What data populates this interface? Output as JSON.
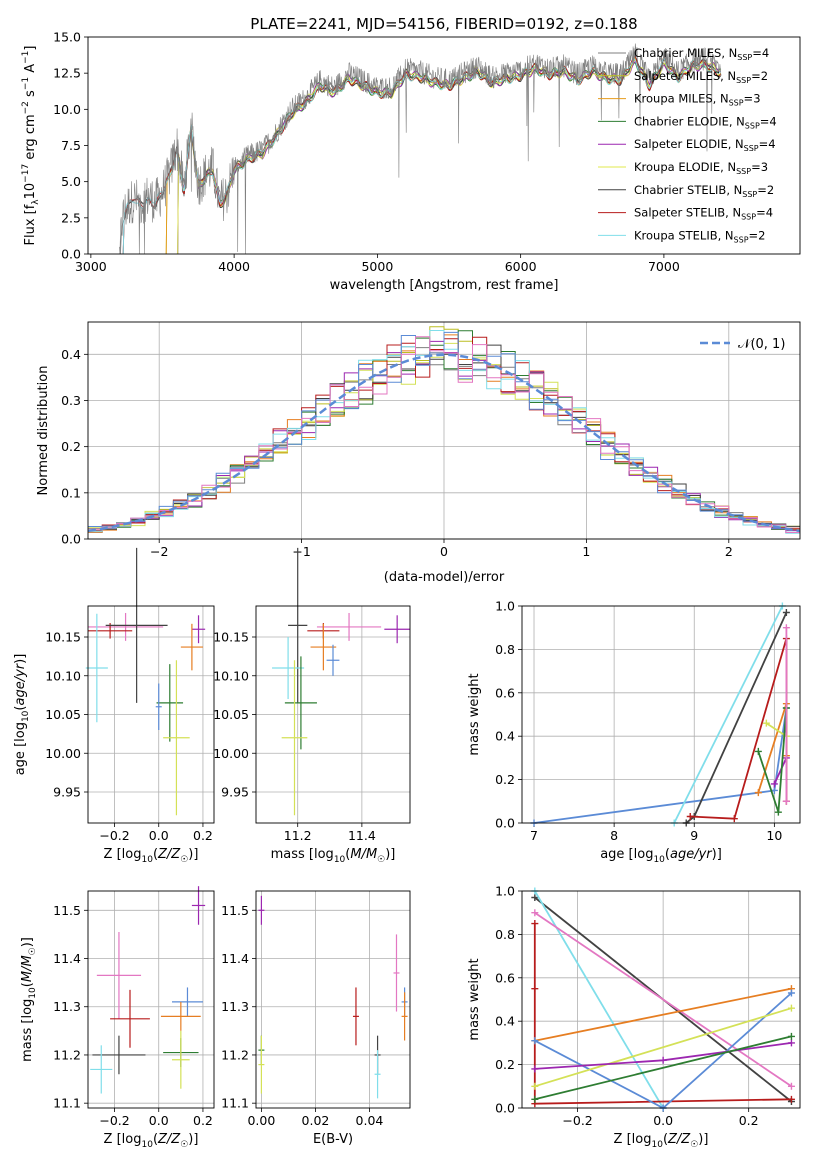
{
  "chart_data": [
    {
      "id": "spectrum",
      "type": "line",
      "title": "PLATE=2241, MJD=54156, FIBERID=0192, z=0.188",
      "xlabel": "wavelength [Angstrom, rest frame]",
      "ylabel": "Flux [f_λ10^-17 erg cm^-2 s^-1 A^-1]",
      "xlim": [
        2980,
        7950
      ],
      "ylim": [
        0,
        15
      ],
      "xticks": [
        "3000",
        "4000",
        "5000",
        "6000",
        "7000"
      ],
      "yticks": [
        "0.0",
        "2.5",
        "5.0",
        "7.5",
        "10.0",
        "12.5",
        "15.0"
      ],
      "grid": false,
      "legend_position": "top-right",
      "data_series": {
        "name": "",
        "color": "#7f7f7f",
        "x": [
          3200,
          3220,
          3250,
          3300,
          3350,
          3400,
          3450,
          3500,
          3550,
          3600,
          3650,
          3700,
          3750,
          3800,
          3850,
          3900,
          3950,
          4000,
          4100,
          4200,
          4300,
          4400,
          4500,
          4600,
          4700,
          4800,
          4900,
          5000,
          5100,
          5200,
          5300,
          5400,
          5500,
          5600,
          5700,
          5800,
          5900,
          6000,
          6100,
          6200,
          6300,
          6400,
          6500,
          6600,
          6700,
          6800,
          6900,
          7000,
          7100,
          7200,
          7300,
          7400
        ],
        "y": [
          0.0,
          2.5,
          3.2,
          3.8,
          3.5,
          4.0,
          3.6,
          4.3,
          5.5,
          7.5,
          4.5,
          9.0,
          4.8,
          5.5,
          6.0,
          3.5,
          4.2,
          6.0,
          6.8,
          7.2,
          8.5,
          10.0,
          10.8,
          12.0,
          11.5,
          12.5,
          12.0,
          11.5,
          11.5,
          12.8,
          12.6,
          12.2,
          12.0,
          12.5,
          13.0,
          12.2,
          12.5,
          12.7,
          13.2,
          12.8,
          13.0,
          12.4,
          13.0,
          12.5,
          12.4,
          13.8,
          12.0,
          13.6,
          12.6,
          13.4,
          13.5,
          12.9
        ]
      },
      "model_series": [
        {
          "name": "Chabrier MILES",
          "nssp": "4",
          "color": "#7f7f7f",
          "start": 3200
        },
        {
          "name": "Salpeter MILES",
          "nssp": "2",
          "color": "#bcbd22",
          "start": 3520
        },
        {
          "name": "Kroupa MILES",
          "nssp": "3",
          "color": "#e69b1c",
          "start": 3520
        },
        {
          "name": "Chabrier ELODIE",
          "nssp": "4",
          "color": "#2e7d32",
          "start": 3600
        },
        {
          "name": "Salpeter ELODIE",
          "nssp": "4",
          "color": "#9c27b0",
          "start": 3600
        },
        {
          "name": "Kroupa ELODIE",
          "nssp": "3",
          "color": "#e0e84d",
          "start": 3600
        },
        {
          "name": "Chabrier STELIB",
          "nssp": "2",
          "color": "#424242",
          "start": 3220
        },
        {
          "name": "Salpeter STELIB",
          "nssp": "4",
          "color": "#b71c1c",
          "start": 3220
        },
        {
          "name": "Kroupa STELIB",
          "nssp": "2",
          "color": "#80deea",
          "start": 3220
        }
      ]
    },
    {
      "id": "residuals",
      "type": "line",
      "xlabel": "(data-model)/error",
      "ylabel": "Normed distribution",
      "xlim": [
        -2.5,
        2.5
      ],
      "ylim": [
        0,
        0.47
      ],
      "xticks": [
        "−2",
        "−1",
        "0",
        "1",
        "2"
      ],
      "yticks": [
        "0.0",
        "0.1",
        "0.2",
        "0.3",
        "0.4"
      ],
      "grid": true,
      "legend_position": "top-right",
      "gaussian_label": "𝒩(0, 1)",
      "gaussian_color": "#5b8bd6",
      "bin_width": 0.1,
      "histogram_colors": [
        "#7f7f7f",
        "#bcbd22",
        "#e67e22",
        "#2e7d32",
        "#9c27b0",
        "#d4e157",
        "#424242",
        "#b71c1c",
        "#80deea",
        "#5b8bd6",
        "#e377c2"
      ]
    },
    {
      "id": "age-vs-Z",
      "type": "scatter",
      "xlabel": "Z [log10(Z/Z☉)]",
      "ylabel": "age [log10(age/yr)]",
      "xlim": [
        -0.32,
        0.25
      ],
      "ylim": [
        9.91,
        10.19
      ],
      "xticks": [
        "−0.2",
        "0.0",
        "0.2"
      ],
      "yticks": [
        "9.95",
        "10.00",
        "10.05",
        "10.10",
        "10.15"
      ],
      "grid": true,
      "points": [
        {
          "color": "#e377c2",
          "x": -0.15,
          "xerr": 0.17,
          "y": 10.163,
          "yerr": 0.018
        },
        {
          "color": "#b71c1c",
          "x": -0.22,
          "xerr": 0.1,
          "y": 10.158,
          "yerr": 0.01
        },
        {
          "color": "#424242",
          "x": -0.1,
          "xerr": 0.14,
          "y": 10.165,
          "yerr": 0.1
        },
        {
          "color": "#9c27b0",
          "x": 0.18,
          "xerr": 0.03,
          "y": 10.16,
          "yerr": 0.018
        },
        {
          "color": "#e67e22",
          "x": 0.15,
          "xerr": 0.05,
          "y": 10.137,
          "yerr": 0.03
        },
        {
          "color": "#80deea",
          "x": -0.28,
          "xerr": 0.05,
          "y": 10.11,
          "yerr": 0.07
        },
        {
          "color": "#2e7d32",
          "x": 0.05,
          "xerr": 0.06,
          "y": 10.065,
          "yerr": 0.05
        },
        {
          "color": "#d4e157",
          "x": 0.08,
          "xerr": 0.06,
          "y": 10.02,
          "yerr": 0.1
        },
        {
          "color": "#5b8bd6",
          "x": 0.0,
          "xerr": 0.0,
          "y": 10.06,
          "yerr": 0.03
        }
      ]
    },
    {
      "id": "age-vs-mass",
      "type": "scatter",
      "xlabel": "mass [log10(M/M☉)]",
      "ylabel": "",
      "xlim": [
        11.07,
        11.55
      ],
      "ylim": [
        9.91,
        10.19
      ],
      "xticks": [
        "11.2",
        "11.4"
      ],
      "yticks": [
        "9.95",
        "10.00",
        "10.05",
        "10.10",
        "10.15"
      ],
      "grid": true,
      "points": [
        {
          "color": "#e377c2",
          "x": 11.36,
          "xerr": 0.1,
          "y": 10.163,
          "yerr": 0.018
        },
        {
          "color": "#b71c1c",
          "x": 11.28,
          "xerr": 0.05,
          "y": 10.158,
          "yerr": 0.01
        },
        {
          "color": "#424242",
          "x": 11.2,
          "xerr": 0.03,
          "y": 10.165,
          "yerr": 0.1
        },
        {
          "color": "#9c27b0",
          "x": 11.51,
          "xerr": 0.04,
          "y": 10.16,
          "yerr": 0.018
        },
        {
          "color": "#e67e22",
          "x": 11.28,
          "xerr": 0.04,
          "y": 10.137,
          "yerr": 0.03
        },
        {
          "color": "#5b8bd6",
          "x": 11.31,
          "xerr": 0.02,
          "y": 10.12,
          "yerr": 0.02
        },
        {
          "color": "#80deea",
          "x": 11.17,
          "xerr": 0.05,
          "y": 10.11,
          "yerr": 0.04
        },
        {
          "color": "#2e7d32",
          "x": 11.21,
          "xerr": 0.05,
          "y": 10.065,
          "yerr": 0.06
        },
        {
          "color": "#d4e157",
          "x": 11.19,
          "xerr": 0.04,
          "y": 10.02,
          "yerr": 0.1
        }
      ]
    },
    {
      "id": "weight-vs-age",
      "type": "line",
      "xlabel": "age [log10(age/yr)]",
      "ylabel": "mass weight",
      "xlim": [
        6.85,
        10.32
      ],
      "ylim": [
        0,
        1.0
      ],
      "xticks": [
        "7",
        "8",
        "9",
        "10"
      ],
      "yticks": [
        "0.0",
        "0.2",
        "0.4",
        "0.6",
        "0.8",
        "1.0"
      ],
      "grid": true,
      "series": [
        {
          "color": "#5b8bd6",
          "x": [
            7.0,
            10.0,
            10.15
          ],
          "y": [
            0.0,
            0.15,
            0.53
          ]
        },
        {
          "color": "#80deea",
          "x": [
            8.75,
            10.1
          ],
          "y": [
            0.0,
            1.0
          ]
        },
        {
          "color": "#424242",
          "x": [
            8.9,
            9.0,
            10.15
          ],
          "y": [
            0.0,
            0.03,
            0.97
          ]
        },
        {
          "color": "#b71c1c",
          "x": [
            8.95,
            9.5,
            10.15,
            10.15
          ],
          "y": [
            0.03,
            0.02,
            0.85,
            0.1
          ]
        },
        {
          "color": "#e67e22",
          "x": [
            9.8,
            10.15,
            10.15
          ],
          "y": [
            0.14,
            0.55,
            0.31
          ]
        },
        {
          "color": "#d4e157",
          "x": [
            9.9,
            10.15
          ],
          "y": [
            0.46,
            0.4
          ]
        },
        {
          "color": "#9c27b0",
          "x": [
            10.0,
            10.15
          ],
          "y": [
            0.18,
            0.3
          ]
        },
        {
          "color": "#2e7d32",
          "x": [
            9.8,
            10.05,
            10.15
          ],
          "y": [
            0.33,
            0.05,
            0.53
          ]
        },
        {
          "color": "#e377c2",
          "x": [
            10.15,
            10.15
          ],
          "y": [
            0.9,
            0.1
          ]
        }
      ]
    },
    {
      "id": "mass-vs-Z",
      "type": "scatter",
      "xlabel": "Z [log10(Z/Z☉)]",
      "ylabel": "mass [log10(M/M☉)]",
      "xlim": [
        -0.32,
        0.25
      ],
      "ylim": [
        11.09,
        11.54
      ],
      "xticks": [
        "−0.2",
        "0.0",
        "0.2"
      ],
      "yticks": [
        "11.1",
        "11.2",
        "11.3",
        "11.4",
        "11.5"
      ],
      "grid": true,
      "points": [
        {
          "color": "#9c27b0",
          "x": 0.18,
          "xerr": 0.03,
          "y": 11.51,
          "yerr": 0.04
        },
        {
          "color": "#e377c2",
          "x": -0.18,
          "xerr": 0.1,
          "y": 11.365,
          "yerr": 0.09
        },
        {
          "color": "#5b8bd6",
          "x": 0.13,
          "xerr": 0.07,
          "y": 11.31,
          "yerr": 0.03
        },
        {
          "color": "#e67e22",
          "x": 0.1,
          "xerr": 0.09,
          "y": 11.28,
          "yerr": 0.03
        },
        {
          "color": "#b71c1c",
          "x": -0.13,
          "xerr": 0.09,
          "y": 11.275,
          "yerr": 0.06
        },
        {
          "color": "#2e7d32",
          "x": 0.1,
          "xerr": 0.08,
          "y": 11.205,
          "yerr": 0.03
        },
        {
          "color": "#424242",
          "x": -0.18,
          "xerr": 0.12,
          "y": 11.2,
          "yerr": 0.04
        },
        {
          "color": "#d4e157",
          "x": 0.1,
          "xerr": 0.04,
          "y": 11.19,
          "yerr": 0.06
        },
        {
          "color": "#80deea",
          "x": -0.26,
          "xerr": 0.05,
          "y": 11.17,
          "yerr": 0.05
        }
      ]
    },
    {
      "id": "mass-vs-EBV",
      "type": "scatter",
      "xlabel": "E(B-V)",
      "ylabel": "",
      "xlim": [
        -0.002,
        0.055
      ],
      "ylim": [
        11.09,
        11.54
      ],
      "xticks": [
        "0.00",
        "0.02",
        "0.04"
      ],
      "yticks": [
        "11.1",
        "11.2",
        "11.3",
        "11.4",
        "11.5"
      ],
      "grid": true,
      "points": [
        {
          "color": "#9c27b0",
          "x": 0.0,
          "y": 11.5,
          "yerr": 0.03
        },
        {
          "color": "#e377c2",
          "x": 0.05,
          "y": 11.37,
          "yerr": 0.08
        },
        {
          "color": "#5b8bd6",
          "x": 0.053,
          "y": 11.31,
          "yerr": 0.03
        },
        {
          "color": "#e67e22",
          "x": 0.053,
          "y": 11.28,
          "yerr": 0.05
        },
        {
          "color": "#b71c1c",
          "x": 0.035,
          "y": 11.28,
          "yerr": 0.06
        },
        {
          "color": "#2e7d32",
          "x": 0.0,
          "y": 11.21,
          "yerr": 0.03
        },
        {
          "color": "#424242",
          "x": 0.043,
          "y": 11.2,
          "yerr": 0.04
        },
        {
          "color": "#d4e157",
          "x": 0.0,
          "y": 11.18,
          "yerr": 0.06
        },
        {
          "color": "#80deea",
          "x": 0.043,
          "y": 11.16,
          "yerr": 0.05
        }
      ]
    },
    {
      "id": "weight-vs-Z",
      "type": "line",
      "xlabel": "Z [log10(Z/Z☉)]",
      "ylabel": "mass weight",
      "xlim": [
        -0.33,
        0.32
      ],
      "ylim": [
        0,
        1.0
      ],
      "xticks": [
        "−0.2",
        "0.0",
        "0.2"
      ],
      "yticks": [
        "0.0",
        "0.2",
        "0.4",
        "0.6",
        "0.8",
        "1.0"
      ],
      "grid": true,
      "series": [
        {
          "color": "#424242",
          "x": [
            -0.3,
            0.3
          ],
          "y": [
            0.97,
            0.03
          ]
        },
        {
          "color": "#80deea",
          "x": [
            -0.3,
            0.0
          ],
          "y": [
            1.0,
            0.0
          ]
        },
        {
          "color": "#e377c2",
          "x": [
            -0.3,
            0.3
          ],
          "y": [
            0.9,
            0.1
          ]
        },
        {
          "color": "#b71c1c",
          "x": [
            -0.3,
            -0.3,
            -0.3,
            0.3
          ],
          "y": [
            0.85,
            0.55,
            0.02,
            0.04
          ]
        },
        {
          "color": "#e67e22",
          "x": [
            -0.3,
            0.3
          ],
          "y": [
            0.31,
            0.55
          ]
        },
        {
          "color": "#5b8bd6",
          "x": [
            -0.3,
            0.0,
            0.3
          ],
          "y": [
            0.31,
            0.0,
            0.53
          ]
        },
        {
          "color": "#d4e157",
          "x": [
            -0.3,
            0.3
          ],
          "y": [
            0.1,
            0.46
          ]
        },
        {
          "color": "#9c27b0",
          "x": [
            -0.3,
            0.0,
            0.3
          ],
          "y": [
            0.18,
            0.22,
            0.3
          ]
        },
        {
          "color": "#2e7d32",
          "x": [
            -0.3,
            0.3
          ],
          "y": [
            0.04,
            0.33
          ]
        }
      ]
    }
  ]
}
